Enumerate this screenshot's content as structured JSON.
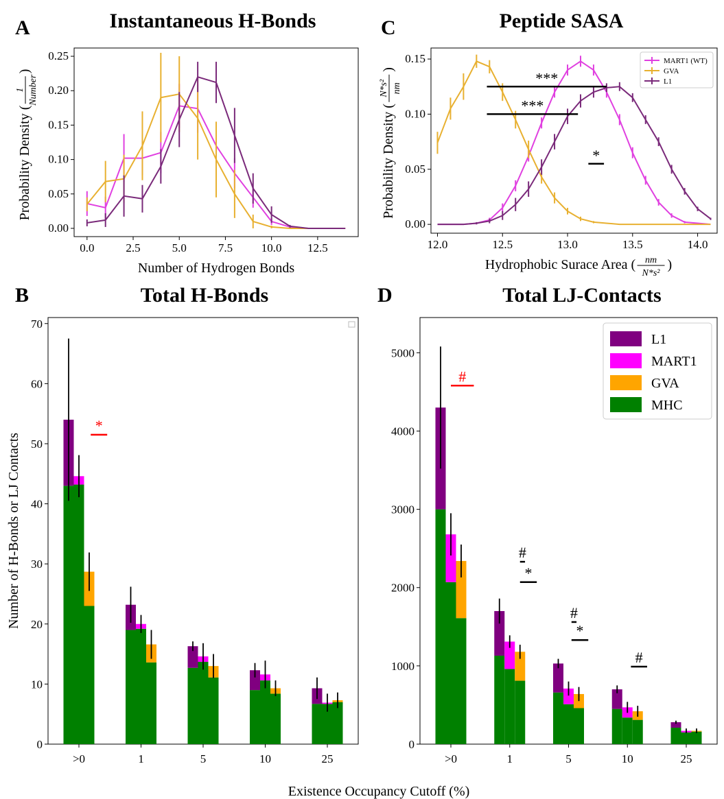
{
  "colors": {
    "L1": "#800080",
    "MART1": "#ff00ff",
    "GVA": "#ffa500",
    "MHC": "#008000",
    "sig_red": "#ff0000",
    "sig_black": "#000000",
    "line_mart": "#e040e0",
    "line_gva": "#e8b030",
    "line_l1": "#7a2a7a"
  },
  "panels": {
    "A": {
      "letter": "A",
      "title": "Instantaneous H-Bonds"
    },
    "B": {
      "letter": "B",
      "title": "Total H-Bonds"
    },
    "C": {
      "letter": "C",
      "title": "Peptide SASA"
    },
    "D": {
      "letter": "D",
      "title": "Total LJ-Contacts"
    }
  },
  "shared_xlabel": "Existence Occupancy Cutoff (%)",
  "chart_data": [
    {
      "id": "A",
      "type": "line",
      "title": "Instantaneous H-Bonds",
      "xlabel": "Number of Hydrogen Bonds",
      "ylabel": "Probability Density (",
      "ylabel_frac_num": "1",
      "ylabel_frac_den": "Number",
      "ylabel_close": ")",
      "xlim": [
        -0.7,
        14.7
      ],
      "ylim": [
        -0.012,
        0.262
      ],
      "xticks": [
        0,
        2.5,
        5,
        7.5,
        10,
        12.5
      ],
      "xticklabels": [
        "0.0",
        "2.5",
        "5.0",
        "7.5",
        "10.0",
        "12.5"
      ],
      "yticks": [
        0,
        0.05,
        0.1,
        0.15,
        0.2,
        0.25
      ],
      "yticklabels": [
        "0.00",
        "0.05",
        "0.10",
        "0.15",
        "0.20",
        "0.25"
      ],
      "series": [
        {
          "key": "MART1",
          "x": [
            0,
            1,
            2,
            3,
            4,
            5,
            6,
            7,
            8,
            9,
            10,
            11,
            12,
            13,
            14
          ],
          "y": [
            0.036,
            0.03,
            0.102,
            0.102,
            0.11,
            0.178,
            0.174,
            0.12,
            0.08,
            0.045,
            0.01,
            0.002,
            0,
            0,
            0
          ],
          "err": [
            0.018,
            0.016,
            0.035,
            0.025,
            0.03,
            0.032,
            0.035,
            0.028,
            0.022,
            0.015,
            0.005,
            0.001,
            0,
            0,
            0
          ]
        },
        {
          "key": "GVA",
          "x": [
            0,
            1,
            2,
            3,
            4,
            5,
            6,
            7,
            8,
            9,
            10,
            11,
            12,
            13,
            14
          ],
          "y": [
            0.035,
            0.068,
            0.072,
            0.12,
            0.19,
            0.195,
            0.16,
            0.1,
            0.05,
            0.01,
            0.002,
            0,
            0,
            0,
            0
          ],
          "err": [
            0.01,
            0.03,
            0.035,
            0.05,
            0.065,
            0.055,
            0.06,
            0.055,
            0.035,
            0.01,
            0.002,
            0,
            0,
            0,
            0
          ]
        },
        {
          "key": "L1",
          "x": [
            0,
            1,
            2,
            3,
            4,
            5,
            6,
            7,
            8,
            9,
            10,
            11,
            12,
            13,
            14
          ],
          "y": [
            0.008,
            0.012,
            0.047,
            0.043,
            0.09,
            0.158,
            0.22,
            0.212,
            0.135,
            0.058,
            0.02,
            0.003,
            0,
            0,
            0
          ],
          "err": [
            0.005,
            0.01,
            0.03,
            0.02,
            0.025,
            0.04,
            0.022,
            0.03,
            0.04,
            0.022,
            0.012,
            0.002,
            0,
            0,
            0
          ]
        }
      ]
    },
    {
      "id": "C",
      "type": "line",
      "title": "Peptide SASA",
      "xlabel": "Hydrophobic Surace Area (",
      "xlabel_frac_num": "nm",
      "xlabel_frac_den": "N*s²",
      "xlabel_close": ")",
      "ylabel": "Probability Density (",
      "ylabel_frac_num": "N*s²",
      "ylabel_frac_den": "nm",
      "ylabel_close": ")",
      "xlim": [
        11.95,
        14.15
      ],
      "ylim": [
        -0.008,
        0.16
      ],
      "xticks": [
        12.0,
        12.5,
        13.0,
        13.5,
        14.0
      ],
      "xticklabels": [
        "12.0",
        "12.5",
        "13.0",
        "13.5",
        "14.0"
      ],
      "yticks": [
        0,
        0.05,
        0.1,
        0.15
      ],
      "yticklabels": [
        "0.00",
        "0.05",
        "0.10",
        "0.15"
      ],
      "legend": {
        "position": "top-right",
        "entries": [
          "MART1 (WT)",
          "GVA",
          "L1"
        ]
      },
      "series": [
        {
          "key": "MART1",
          "name": "MART1 (WT)",
          "x": [
            12.0,
            12.1,
            12.2,
            12.3,
            12.4,
            12.5,
            12.6,
            12.7,
            12.8,
            12.9,
            13.0,
            13.1,
            13.2,
            13.3,
            13.4,
            13.5,
            13.6,
            13.7,
            13.8,
            13.9,
            14.0,
            14.1
          ],
          "y": [
            0,
            0,
            0,
            0.001,
            0.004,
            0.015,
            0.035,
            0.062,
            0.092,
            0.12,
            0.14,
            0.148,
            0.14,
            0.12,
            0.095,
            0.065,
            0.04,
            0.02,
            0.008,
            0.002,
            0.001,
            0
          ],
          "err": [
            0,
            0,
            0,
            0.001,
            0.002,
            0.004,
            0.005,
            0.005,
            0.005,
            0.005,
            0.005,
            0.005,
            0.005,
            0.005,
            0.005,
            0.005,
            0.004,
            0.003,
            0.002,
            0.001,
            0,
            0
          ]
        },
        {
          "key": "GVA",
          "name": "GVA",
          "x": [
            12.0,
            12.1,
            12.2,
            12.3,
            12.4,
            12.5,
            12.6,
            12.7,
            12.8,
            12.9,
            13.0,
            13.1,
            13.2,
            13.3,
            13.4,
            13.5,
            13.6,
            13.7,
            13.8,
            13.9,
            14.0,
            14.1
          ],
          "y": [
            0.074,
            0.105,
            0.125,
            0.148,
            0.143,
            0.12,
            0.095,
            0.068,
            0.043,
            0.024,
            0.012,
            0.005,
            0.002,
            0.001,
            0,
            0,
            0,
            0,
            0,
            0,
            0,
            0
          ],
          "err": [
            0.01,
            0.01,
            0.012,
            0.006,
            0.006,
            0.008,
            0.008,
            0.008,
            0.006,
            0.005,
            0.003,
            0.002,
            0.001,
            0,
            0,
            0,
            0,
            0,
            0,
            0,
            0,
            0
          ]
        },
        {
          "key": "L1",
          "name": "L1",
          "x": [
            12.0,
            12.1,
            12.2,
            12.3,
            12.4,
            12.5,
            12.6,
            12.7,
            12.8,
            12.9,
            13.0,
            13.1,
            13.2,
            13.3,
            13.4,
            13.5,
            13.6,
            13.7,
            13.8,
            13.9,
            14.0,
            14.1
          ],
          "y": [
            0,
            0,
            0,
            0.001,
            0.003,
            0.008,
            0.018,
            0.032,
            0.052,
            0.075,
            0.098,
            0.112,
            0.12,
            0.124,
            0.125,
            0.115,
            0.095,
            0.075,
            0.05,
            0.03,
            0.014,
            0.005
          ],
          "err": [
            0,
            0,
            0,
            0.001,
            0.002,
            0.004,
            0.006,
            0.007,
            0.007,
            0.007,
            0.007,
            0.006,
            0.005,
            0.004,
            0.004,
            0.004,
            0.004,
            0.004,
            0.004,
            0.003,
            0.002,
            0.001
          ]
        }
      ],
      "annotations": [
        {
          "text": "***",
          "x1": 12.38,
          "x2": 13.3,
          "y": 0.125
        },
        {
          "text": "***",
          "x1": 12.38,
          "x2": 13.08,
          "y": 0.1
        },
        {
          "text": "*",
          "x1": 13.16,
          "x2": 13.28,
          "y": 0.055
        }
      ]
    },
    {
      "id": "B",
      "type": "bar",
      "title": "Total H-Bonds",
      "ylabel": "Number of H-Bonds or LJ Contacts",
      "categories": [
        ">0",
        "1",
        "5",
        "10",
        "25"
      ],
      "ylim": [
        0,
        71
      ],
      "yticks": [
        0,
        10,
        20,
        30,
        40,
        50,
        60,
        70
      ],
      "stacked": true,
      "groups": [
        "L1",
        "MART1",
        "GVA"
      ],
      "mhc": {
        "L1": [
          43,
          19,
          12.7,
          9,
          6.7
        ],
        "MART1": [
          43.2,
          19.2,
          13.7,
          10.6,
          6.7
        ],
        "GVA": [
          23,
          13.6,
          11.1,
          8.4,
          7
        ]
      },
      "totals": {
        "L1": [
          54,
          23.2,
          16.3,
          12.3,
          9.3
        ],
        "MART1": [
          44.6,
          20,
          14.6,
          11.6,
          6.9
        ],
        "GVA": [
          28.7,
          16.6,
          13,
          9.3,
          7.3
        ]
      },
      "errors": {
        "L1": [
          13.5,
          3,
          0.8,
          1.2,
          1.8
        ],
        "MART1": [
          3.5,
          1.5,
          2.2,
          2.3,
          1.5
        ],
        "GVA": [
          3.2,
          2.4,
          2,
          1.3,
          1.3
        ]
      },
      "annotations": [
        {
          "text": "*",
          "color": "red",
          "x_category": 0,
          "offset": 0.38,
          "y": 51.5
        }
      ],
      "legend": {
        "position": "top-right",
        "entries": []
      }
    },
    {
      "id": "D",
      "type": "bar",
      "title": "Total LJ-Contacts",
      "categories": [
        ">0",
        "1",
        "5",
        "10",
        "25"
      ],
      "ylim": [
        0,
        5450
      ],
      "yticks": [
        0,
        1000,
        2000,
        3000,
        4000,
        5000
      ],
      "stacked": true,
      "groups": [
        "L1",
        "MART1",
        "GVA"
      ],
      "mhc": {
        "L1": [
          3000,
          1130,
          660,
          450,
          210
        ],
        "MART1": [
          2070,
          960,
          510,
          340,
          150
        ],
        "GVA": [
          1610,
          810,
          460,
          310,
          160
        ]
      },
      "totals": {
        "L1": [
          4300,
          1700,
          1030,
          700,
          280
        ],
        "MART1": [
          2680,
          1310,
          710,
          470,
          170
        ],
        "GVA": [
          2340,
          1180,
          640,
          420,
          170
        ]
      },
      "errors": {
        "L1": [
          780,
          160,
          60,
          50,
          20
        ],
        "MART1": [
          270,
          80,
          90,
          70,
          30
        ],
        "GVA": [
          210,
          90,
          90,
          70,
          30
        ]
      },
      "legend": {
        "position": "top-right",
        "entries": [
          "L1",
          "MART1",
          "GVA",
          "MHC"
        ]
      },
      "annotations": [
        {
          "text": "#",
          "color": "red",
          "x_category": 0,
          "x1off": 0.0,
          "x2off": 0.78,
          "y": 4580
        },
        {
          "text": "#",
          "color": "black",
          "x_category": 1,
          "x1off": 0.35,
          "x2off": 0.52,
          "y": 2330
        },
        {
          "text": "*",
          "color": "black",
          "x_category": 1,
          "x1off": 0.35,
          "x2off": 0.92,
          "y": 2070
        },
        {
          "text": "#",
          "color": "black",
          "x_category": 2,
          "x1off": 0.1,
          "x2off": 0.27,
          "y": 1560
        },
        {
          "text": "*",
          "color": "black",
          "x_category": 2,
          "x1off": 0.1,
          "x2off": 0.67,
          "y": 1330
        },
        {
          "text": "#",
          "color": "black",
          "x_category": 3,
          "x1off": 0.12,
          "x2off": 0.67,
          "y": 990
        }
      ]
    }
  ]
}
